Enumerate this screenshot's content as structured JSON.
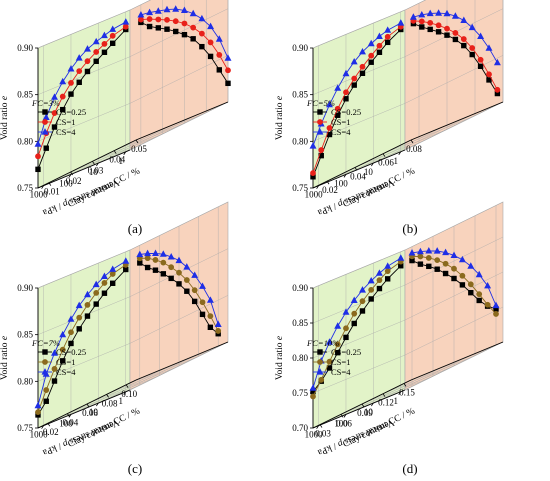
{
  "chart_data": [
    {
      "type": "scatter",
      "panel": "(a)",
      "caption": "(a)",
      "fc_label": "FC=3%",
      "ylabel": "Void ratio e",
      "xlabel": "Vertical stress p / kPa",
      "zlabel": "Clay content CC / %",
      "x_scale": "log",
      "xlim": [
        0.7,
        1600
      ],
      "x_ticks": [
        "1",
        "10",
        "100",
        "1000"
      ],
      "ylim": [
        0.75,
        0.9
      ],
      "y_ticks": [
        "0.75",
        "0.80",
        "0.85",
        "0.90"
      ],
      "zlim": [
        0.005,
        0.05
      ],
      "z_ticks": [
        "0.01",
        "0.02",
        "0.03",
        "0.04",
        "0.05"
      ],
      "series": [
        {
          "name": "CS=0.25",
          "marker": "square",
          "color": "#000000",
          "x": [
            1,
            3,
            6,
            12,
            25,
            50,
            100,
            200,
            400,
            800,
            1600
          ],
          "y": [
            0.881,
            0.872,
            0.866,
            0.86,
            0.853,
            0.845,
            0.836,
            0.823,
            0.808,
            0.789,
            0.77
          ]
        },
        {
          "name": "CS=1",
          "marker": "circle",
          "color": "#e8211a",
          "x": [
            1,
            3,
            6,
            12,
            25,
            50,
            100,
            200,
            400,
            800,
            1600
          ],
          "y": [
            0.884,
            0.88,
            0.875,
            0.87,
            0.864,
            0.857,
            0.848,
            0.837,
            0.823,
            0.805,
            0.784
          ]
        },
        {
          "name": "CS=4",
          "marker": "triangle",
          "color": "#1f2fe6",
          "x": [
            1,
            3,
            6,
            12,
            25,
            50,
            100,
            200,
            400,
            800,
            1600
          ],
          "y": [
            0.889,
            0.887,
            0.884,
            0.881,
            0.877,
            0.871,
            0.863,
            0.853,
            0.84,
            0.822,
            0.797
          ]
        }
      ],
      "projection_cc": [
        {
          "name": "CS=0.25",
          "cc": [
            0.01,
            0.014,
            0.018,
            0.022,
            0.026,
            0.03,
            0.034,
            0.038,
            0.042,
            0.046,
            0.05
          ]
        },
        {
          "name": "CS=1",
          "cc": [
            0.01,
            0.014,
            0.018,
            0.022,
            0.026,
            0.03,
            0.034,
            0.038,
            0.042,
            0.046,
            0.05
          ]
        },
        {
          "name": "CS=4",
          "cc": [
            0.01,
            0.014,
            0.018,
            0.022,
            0.026,
            0.03,
            0.034,
            0.038,
            0.042,
            0.046,
            0.05
          ]
        }
      ]
    },
    {
      "type": "scatter",
      "panel": "(b)",
      "caption": "(b)",
      "fc_label": "FC=5%",
      "ylabel": "Void ratio e",
      "xlabel": "Vertical stress p / kPa",
      "zlabel": "Clay content CC / %",
      "x_scale": "log",
      "xlim": [
        0.7,
        1600
      ],
      "x_ticks": [
        "1",
        "10",
        "100",
        "1000"
      ],
      "ylim": [
        0.75,
        0.9
      ],
      "y_ticks": [
        "0.75",
        "0.80",
        "0.85",
        "0.90"
      ],
      "zlim": [
        0.01,
        0.08
      ],
      "z_ticks": [
        "0.02",
        "0.04",
        "0.06",
        "0.08"
      ],
      "series": [
        {
          "name": "CS=0.25",
          "marker": "square",
          "color": "#000000",
          "x": [
            1,
            3,
            6,
            12,
            25,
            50,
            100,
            200,
            400,
            800,
            1600
          ],
          "y": [
            0.881,
            0.873,
            0.866,
            0.859,
            0.851,
            0.842,
            0.831,
            0.817,
            0.8,
            0.781,
            0.762
          ]
        },
        {
          "name": "CS=1",
          "marker": "circle",
          "color": "#e8211a",
          "x": [
            1,
            3,
            6,
            12,
            25,
            50,
            100,
            200,
            400,
            800,
            1600
          ],
          "y": [
            0.884,
            0.879,
            0.873,
            0.866,
            0.858,
            0.849,
            0.838,
            0.824,
            0.807,
            0.787,
            0.766
          ]
        },
        {
          "name": "CS=4",
          "marker": "triangle",
          "color": "#1f2fe6",
          "x": [
            1,
            3,
            6,
            12,
            25,
            50,
            100,
            200,
            400,
            800,
            1600
          ],
          "y": [
            0.888,
            0.886,
            0.883,
            0.879,
            0.874,
            0.867,
            0.858,
            0.846,
            0.832,
            0.815,
            0.795
          ]
        }
      ],
      "projection_cc": [
        {
          "name": "CS=0.25",
          "cc": [
            0.016,
            0.022,
            0.028,
            0.034,
            0.04,
            0.046,
            0.052,
            0.058,
            0.064,
            0.07,
            0.076
          ]
        },
        {
          "name": "CS=1",
          "cc": [
            0.016,
            0.022,
            0.028,
            0.034,
            0.04,
            0.046,
            0.052,
            0.058,
            0.064,
            0.07,
            0.076
          ]
        },
        {
          "name": "CS=4",
          "cc": [
            0.016,
            0.022,
            0.028,
            0.034,
            0.04,
            0.046,
            0.052,
            0.058,
            0.064,
            0.07,
            0.076
          ]
        }
      ]
    },
    {
      "type": "scatter",
      "panel": "(c)",
      "caption": "(c)",
      "fc_label": "FC=7%",
      "ylabel": "Void ratio e",
      "xlabel": "Vertical stress p / kPa",
      "zlabel": "Clay content CC / %",
      "x_scale": "log",
      "xlim": [
        0.7,
        1600
      ],
      "x_ticks": [
        "1",
        "10",
        "100",
        "1000"
      ],
      "ylim": [
        0.75,
        0.9
      ],
      "y_ticks": [
        "0.75",
        "0.80",
        "0.85",
        "0.90"
      ],
      "zlim": [
        0.01,
        0.11
      ],
      "z_ticks": [
        "0.02",
        "0.04",
        "0.06",
        "0.08",
        "0.10"
      ],
      "series": [
        {
          "name": "CS=0.25",
          "marker": "square",
          "color": "#000000",
          "x": [
            1,
            3,
            6,
            12,
            25,
            50,
            100,
            200,
            400,
            800,
            1600
          ],
          "y": [
            0.881,
            0.872,
            0.865,
            0.857,
            0.848,
            0.838,
            0.826,
            0.811,
            0.793,
            0.775,
            0.764
          ]
        },
        {
          "name": "CS=1",
          "marker": "circle",
          "color": "#8b6a1e",
          "x": [
            1,
            3,
            6,
            12,
            25,
            50,
            100,
            200,
            400,
            800,
            1600
          ],
          "y": [
            0.886,
            0.882,
            0.876,
            0.869,
            0.86,
            0.85,
            0.838,
            0.823,
            0.806,
            0.787,
            0.767
          ]
        },
        {
          "name": "CS=4",
          "marker": "triangle",
          "color": "#1f2fe6",
          "x": [
            1,
            3,
            6,
            12,
            25,
            50,
            100,
            200,
            400,
            800,
            1600
          ],
          "y": [
            0.89,
            0.887,
            0.883,
            0.878,
            0.871,
            0.863,
            0.852,
            0.839,
            0.823,
            0.804,
            0.774
          ]
        }
      ],
      "projection_cc": [
        {
          "name": "CS=0.25",
          "cc": [
            0.02,
            0.028,
            0.036,
            0.044,
            0.052,
            0.06,
            0.068,
            0.076,
            0.084,
            0.092,
            0.1
          ]
        },
        {
          "name": "CS=1",
          "cc": [
            0.02,
            0.028,
            0.036,
            0.044,
            0.052,
            0.06,
            0.068,
            0.076,
            0.084,
            0.092,
            0.1
          ]
        },
        {
          "name": "CS=4",
          "cc": [
            0.02,
            0.028,
            0.036,
            0.044,
            0.052,
            0.06,
            0.068,
            0.076,
            0.084,
            0.092,
            0.1
          ]
        }
      ]
    },
    {
      "type": "scatter",
      "panel": "(d)",
      "caption": "(d)",
      "fc_label": "FC=10%",
      "ylabel": "Void ratio e",
      "xlabel": "Vertical stress p / kPa",
      "zlabel": "Clay content CC / %",
      "x_scale": "log",
      "xlim": [
        0.7,
        1600
      ],
      "x_ticks": [
        "1",
        "10",
        "100",
        "1000"
      ],
      "ylim": [
        0.7,
        0.9
      ],
      "y_ticks": [
        "0.70",
        "0.75",
        "0.80",
        "0.85",
        "0.90"
      ],
      "zlim": [
        0.02,
        0.16
      ],
      "z_ticks": [
        "0.03",
        "0.06",
        "0.09",
        "0.12",
        "0.15"
      ],
      "series": [
        {
          "name": "CS=0.25",
          "marker": "square",
          "color": "#000000",
          "x": [
            1,
            3,
            6,
            12,
            25,
            50,
            100,
            200,
            400,
            800,
            1600
          ],
          "y": [
            0.88,
            0.869,
            0.86,
            0.85,
            0.838,
            0.825,
            0.81,
            0.793,
            0.776,
            0.762,
            0.752
          ]
        },
        {
          "name": "CS=1",
          "marker": "circle",
          "color": "#8b6a1e",
          "x": [
            1,
            3,
            6,
            12,
            25,
            50,
            100,
            200,
            400,
            800,
            1600
          ],
          "y": [
            0.886,
            0.88,
            0.872,
            0.863,
            0.852,
            0.839,
            0.823,
            0.805,
            0.785,
            0.764,
            0.745
          ]
        },
        {
          "name": "CS=4",
          "marker": "triangle",
          "color": "#1f2fe6",
          "x": [
            1,
            3,
            6,
            12,
            25,
            50,
            100,
            200,
            400,
            800,
            1600
          ],
          "y": [
            0.891,
            0.887,
            0.882,
            0.876,
            0.868,
            0.858,
            0.846,
            0.831,
            0.813,
            0.791,
            0.757
          ]
        }
      ],
      "projection_cc": [
        {
          "name": "CS=0.25",
          "cc": [
            0.03,
            0.042,
            0.054,
            0.066,
            0.078,
            0.09,
            0.102,
            0.114,
            0.126,
            0.138,
            0.15
          ]
        },
        {
          "name": "CS=1",
          "cc": [
            0.03,
            0.042,
            0.054,
            0.066,
            0.078,
            0.09,
            0.102,
            0.114,
            0.126,
            0.138,
            0.15
          ]
        },
        {
          "name": "CS=4",
          "cc": [
            0.03,
            0.042,
            0.054,
            0.066,
            0.078,
            0.09,
            0.102,
            0.114,
            0.126,
            0.138,
            0.15
          ]
        }
      ]
    }
  ],
  "colors": {
    "left_wall": "#e2f3c8",
    "right_wall": "#f8d3bd",
    "floor": "#b2ece2",
    "grid": "#aaaaaa",
    "axis": "#000000"
  }
}
